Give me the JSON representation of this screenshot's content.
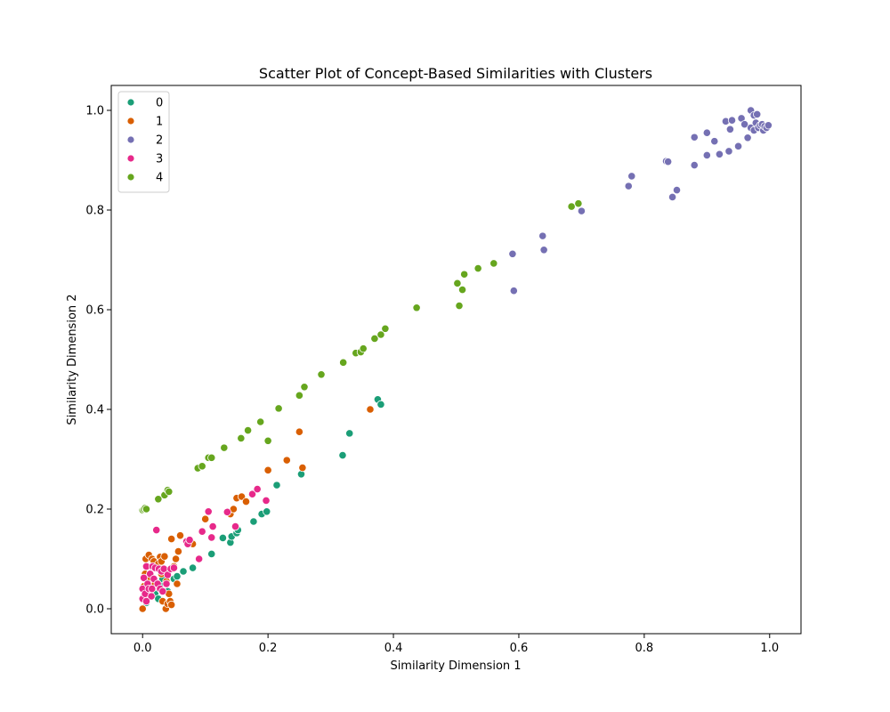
{
  "chart_data": {
    "type": "scatter",
    "title": "Scatter Plot of Concept-Based Similarities with Clusters",
    "xlabel": "Similarity Dimension 1",
    "ylabel": "Similarity Dimension 2",
    "xlim": [
      -0.05,
      1.05
    ],
    "ylim": [
      -0.05,
      1.05
    ],
    "xticks": [
      0.0,
      0.2,
      0.4,
      0.6,
      0.8,
      1.0
    ],
    "yticks": [
      0.0,
      0.2,
      0.4,
      0.6,
      0.8,
      1.0
    ],
    "xtick_labels": [
      "0.0",
      "0.2",
      "0.4",
      "0.6",
      "0.8",
      "1.0"
    ],
    "ytick_labels": [
      "0.0",
      "0.2",
      "0.4",
      "0.6",
      "0.8",
      "1.0"
    ],
    "grid": false,
    "legend_position": "top-left",
    "series": [
      {
        "name": "0",
        "color": "#1b9e77",
        "points": [
          [
            0.006,
            0.012
          ],
          [
            0.012,
            0.025
          ],
          [
            0.02,
            0.03
          ],
          [
            0.028,
            0.04
          ],
          [
            0.035,
            0.05
          ],
          [
            0.04,
            0.035
          ],
          [
            0.05,
            0.06
          ],
          [
            0.055,
            0.065
          ],
          [
            0.065,
            0.075
          ],
          [
            0.08,
            0.082
          ],
          [
            0.11,
            0.11
          ],
          [
            0.128,
            0.142
          ],
          [
            0.14,
            0.133
          ],
          [
            0.142,
            0.145
          ],
          [
            0.15,
            0.152
          ],
          [
            0.152,
            0.158
          ],
          [
            0.177,
            0.175
          ],
          [
            0.19,
            0.19
          ],
          [
            0.198,
            0.195
          ],
          [
            0.214,
            0.248
          ],
          [
            0.253,
            0.27
          ],
          [
            0.319,
            0.308
          ],
          [
            0.33,
            0.352
          ],
          [
            0.375,
            0.42
          ],
          [
            0.38,
            0.41
          ],
          [
            0.008,
            0.055
          ],
          [
            0.015,
            0.045
          ],
          [
            0.025,
            0.02
          ],
          [
            0.032,
            0.06
          ]
        ]
      },
      {
        "name": "1",
        "color": "#d95f02",
        "points": [
          [
            0.0,
            0.0
          ],
          [
            0.0,
            0.02
          ],
          [
            0.002,
            0.045
          ],
          [
            0.004,
            0.07
          ],
          [
            0.005,
            0.1
          ],
          [
            0.008,
            0.085
          ],
          [
            0.01,
            0.108
          ],
          [
            0.012,
            0.06
          ],
          [
            0.015,
            0.1
          ],
          [
            0.018,
            0.095
          ],
          [
            0.02,
            0.05
          ],
          [
            0.022,
            0.085
          ],
          [
            0.025,
            0.09
          ],
          [
            0.028,
            0.104
          ],
          [
            0.03,
            0.095
          ],
          [
            0.032,
            0.015
          ],
          [
            0.035,
            0.105
          ],
          [
            0.037,
            0.0
          ],
          [
            0.04,
            0.01
          ],
          [
            0.042,
            0.03
          ],
          [
            0.044,
            0.015
          ],
          [
            0.046,
            0.008
          ],
          [
            0.048,
            0.08
          ],
          [
            0.05,
            0.085
          ],
          [
            0.053,
            0.1
          ],
          [
            0.055,
            0.05
          ],
          [
            0.057,
            0.115
          ],
          [
            0.06,
            0.147
          ],
          [
            0.046,
            0.14
          ],
          [
            0.08,
            0.13
          ],
          [
            0.1,
            0.18
          ],
          [
            0.14,
            0.19
          ],
          [
            0.145,
            0.2
          ],
          [
            0.15,
            0.222
          ],
          [
            0.158,
            0.225
          ],
          [
            0.165,
            0.215
          ],
          [
            0.2,
            0.278
          ],
          [
            0.23,
            0.298
          ],
          [
            0.25,
            0.355
          ],
          [
            0.255,
            0.283
          ],
          [
            0.363,
            0.4
          ],
          [
            0.038,
            0.055
          ],
          [
            0.03,
            0.07
          ],
          [
            0.01,
            0.03
          ]
        ]
      },
      {
        "name": "2",
        "color": "#7570b3",
        "points": [
          [
            0.59,
            0.712
          ],
          [
            0.592,
            0.638
          ],
          [
            0.638,
            0.748
          ],
          [
            0.64,
            0.72
          ],
          [
            0.7,
            0.798
          ],
          [
            0.775,
            0.848
          ],
          [
            0.78,
            0.868
          ],
          [
            0.835,
            0.898
          ],
          [
            0.838,
            0.897
          ],
          [
            0.845,
            0.826
          ],
          [
            0.852,
            0.84
          ],
          [
            0.88,
            0.946
          ],
          [
            0.88,
            0.89
          ],
          [
            0.9,
            0.955
          ],
          [
            0.9,
            0.91
          ],
          [
            0.912,
            0.938
          ],
          [
            0.92,
            0.912
          ],
          [
            0.93,
            0.978
          ],
          [
            0.935,
            0.918
          ],
          [
            0.937,
            0.962
          ],
          [
            0.94,
            0.98
          ],
          [
            0.95,
            0.928
          ],
          [
            0.955,
            0.984
          ],
          [
            0.96,
            0.972
          ],
          [
            0.965,
            0.945
          ],
          [
            0.97,
            1.0
          ],
          [
            0.97,
            0.965
          ],
          [
            0.975,
            0.99
          ],
          [
            0.975,
            0.96
          ],
          [
            0.978,
            0.975
          ],
          [
            0.98,
            0.992
          ],
          [
            0.982,
            0.965
          ],
          [
            0.985,
            0.97
          ],
          [
            0.988,
            0.972
          ],
          [
            0.99,
            0.96
          ],
          [
            0.992,
            0.968
          ],
          [
            0.995,
            0.965
          ],
          [
            0.998,
            0.97
          ]
        ]
      },
      {
        "name": "3",
        "color": "#e7298a",
        "points": [
          [
            0.0,
            0.02
          ],
          [
            0.0,
            0.04
          ],
          [
            0.002,
            0.062
          ],
          [
            0.004,
            0.03
          ],
          [
            0.006,
            0.085
          ],
          [
            0.008,
            0.05
          ],
          [
            0.01,
            0.04
          ],
          [
            0.012,
            0.07
          ],
          [
            0.014,
            0.025
          ],
          [
            0.016,
            0.085
          ],
          [
            0.018,
            0.06
          ],
          [
            0.02,
            0.082
          ],
          [
            0.022,
            0.158
          ],
          [
            0.024,
            0.05
          ],
          [
            0.026,
            0.08
          ],
          [
            0.028,
            0.04
          ],
          [
            0.03,
            0.075
          ],
          [
            0.034,
            0.08
          ],
          [
            0.038,
            0.05
          ],
          [
            0.04,
            0.068
          ],
          [
            0.045,
            0.08
          ],
          [
            0.05,
            0.082
          ],
          [
            0.07,
            0.135
          ],
          [
            0.072,
            0.13
          ],
          [
            0.075,
            0.138
          ],
          [
            0.09,
            0.1
          ],
          [
            0.095,
            0.155
          ],
          [
            0.105,
            0.195
          ],
          [
            0.11,
            0.143
          ],
          [
            0.112,
            0.165
          ],
          [
            0.135,
            0.194
          ],
          [
            0.148,
            0.165
          ],
          [
            0.175,
            0.23
          ],
          [
            0.183,
            0.24
          ],
          [
            0.197,
            0.217
          ],
          [
            0.006,
            0.015
          ],
          [
            0.015,
            0.04
          ],
          [
            0.032,
            0.035
          ]
        ]
      },
      {
        "name": "4",
        "color": "#66a61e",
        "points": [
          [
            0.0,
            0.198
          ],
          [
            0.002,
            0.2
          ],
          [
            0.004,
            0.202
          ],
          [
            0.006,
            0.2
          ],
          [
            0.025,
            0.22
          ],
          [
            0.035,
            0.228
          ],
          [
            0.04,
            0.238
          ],
          [
            0.042,
            0.235
          ],
          [
            0.088,
            0.282
          ],
          [
            0.095,
            0.286
          ],
          [
            0.105,
            0.303
          ],
          [
            0.11,
            0.303
          ],
          [
            0.13,
            0.323
          ],
          [
            0.157,
            0.342
          ],
          [
            0.168,
            0.358
          ],
          [
            0.188,
            0.375
          ],
          [
            0.2,
            0.337
          ],
          [
            0.217,
            0.402
          ],
          [
            0.25,
            0.428
          ],
          [
            0.258,
            0.445
          ],
          [
            0.285,
            0.47
          ],
          [
            0.32,
            0.494
          ],
          [
            0.34,
            0.513
          ],
          [
            0.348,
            0.515
          ],
          [
            0.352,
            0.522
          ],
          [
            0.37,
            0.542
          ],
          [
            0.38,
            0.55
          ],
          [
            0.387,
            0.562
          ],
          [
            0.437,
            0.604
          ],
          [
            0.502,
            0.653
          ],
          [
            0.505,
            0.608
          ],
          [
            0.51,
            0.64
          ],
          [
            0.513,
            0.671
          ],
          [
            0.535,
            0.683
          ],
          [
            0.56,
            0.693
          ],
          [
            0.684,
            0.807
          ],
          [
            0.695,
            0.813
          ]
        ]
      }
    ]
  }
}
